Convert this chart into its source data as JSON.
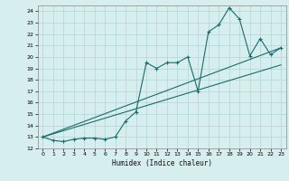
{
  "xlabel": "Humidex (Indice chaleur)",
  "bg_color": "#d6eeee",
  "grid_color": "#b8d8d8",
  "line_color": "#1a6b6b",
  "xlim": [
    -0.5,
    23.5
  ],
  "ylim": [
    12,
    24.5
  ],
  "xticks": [
    0,
    1,
    2,
    3,
    4,
    5,
    6,
    7,
    8,
    9,
    10,
    11,
    12,
    13,
    14,
    15,
    16,
    17,
    18,
    19,
    20,
    21,
    22,
    23
  ],
  "yticks": [
    12,
    13,
    14,
    15,
    16,
    17,
    18,
    19,
    20,
    21,
    22,
    23,
    24
  ],
  "line1_x": [
    0,
    1,
    2,
    3,
    4,
    5,
    6,
    7,
    8,
    9,
    10,
    11,
    12,
    13,
    14,
    15,
    16,
    17,
    18,
    19,
    20,
    21,
    22,
    23
  ],
  "line1_y": [
    13.0,
    12.7,
    12.6,
    12.8,
    12.9,
    12.9,
    12.8,
    13.0,
    14.4,
    15.2,
    19.5,
    19.0,
    19.5,
    19.5,
    20.0,
    17.0,
    22.2,
    22.8,
    24.3,
    23.3,
    20.1,
    21.6,
    20.2,
    20.8
  ],
  "line2_x": [
    0,
    23
  ],
  "line2_y": [
    13.0,
    20.8
  ],
  "line3_x": [
    0,
    23
  ],
  "line3_y": [
    13.0,
    19.3
  ]
}
